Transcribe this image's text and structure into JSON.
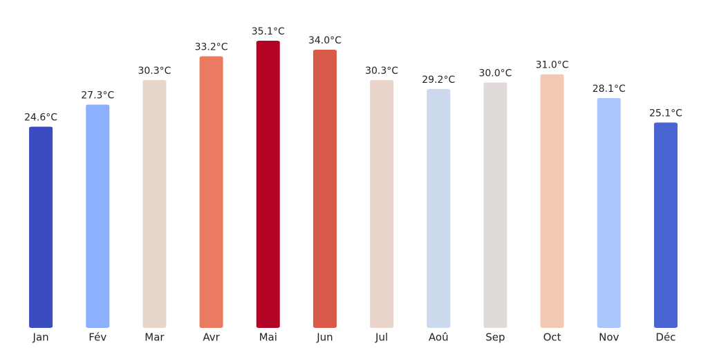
{
  "chart_data": {
    "type": "bar",
    "categories": [
      "Jan",
      "Fév",
      "Mar",
      "Avr",
      "Mai",
      "Jun",
      "Jul",
      "Aoû",
      "Sep",
      "Oct",
      "Nov",
      "Déc"
    ],
    "values": [
      24.6,
      27.3,
      30.3,
      33.2,
      35.1,
      34.0,
      30.3,
      29.2,
      30.0,
      31.0,
      28.1,
      25.1
    ],
    "value_labels": [
      "24.6°C",
      "27.3°C",
      "30.3°C",
      "33.2°C",
      "35.1°C",
      "34.0°C",
      "30.3°C",
      "29.2°C",
      "30.0°C",
      "31.0°C",
      "28.1°C",
      "25.1°C"
    ],
    "colors": [
      "#3b4cc0",
      "#8db0fe",
      "#e8d6cc",
      "#ea7b60",
      "#b40426",
      "#da5a49",
      "#e9d5cb",
      "#cdd9ec",
      "#e0dbd9",
      "#f2c9b4",
      "#aac7fd",
      "#4a63d3"
    ]
  }
}
